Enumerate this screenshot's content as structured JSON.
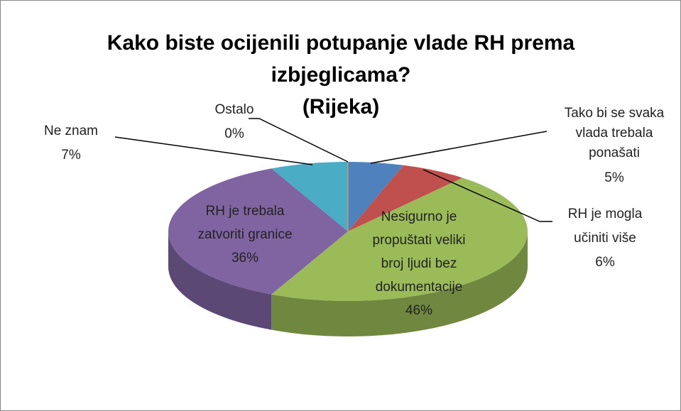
{
  "chart_data": {
    "type": "pie",
    "title": "Kako biste ocijenili potupanje vlade RH prema izbjeglicama?",
    "subtitle": "(Rijeka)",
    "categories": [
      "Tako bi se svaka vlada trebala ponašati",
      "RH je mogla učiniti više",
      "Nesigurno je propuštati veliki broj ljudi bez dokumentacije",
      "RH je trebala zatvoriti granice",
      "Ne znam",
      "Ostalo"
    ],
    "values": [
      5,
      6,
      46,
      36,
      7,
      0
    ],
    "value_labels": [
      "5%",
      "6%",
      "46%",
      "36%",
      "7%",
      "0%"
    ],
    "colors": [
      "#4f81bd",
      "#c0504d",
      "#9bbb59",
      "#8064a2",
      "#4bacc6",
      "#f79646"
    ],
    "three_d": true
  }
}
